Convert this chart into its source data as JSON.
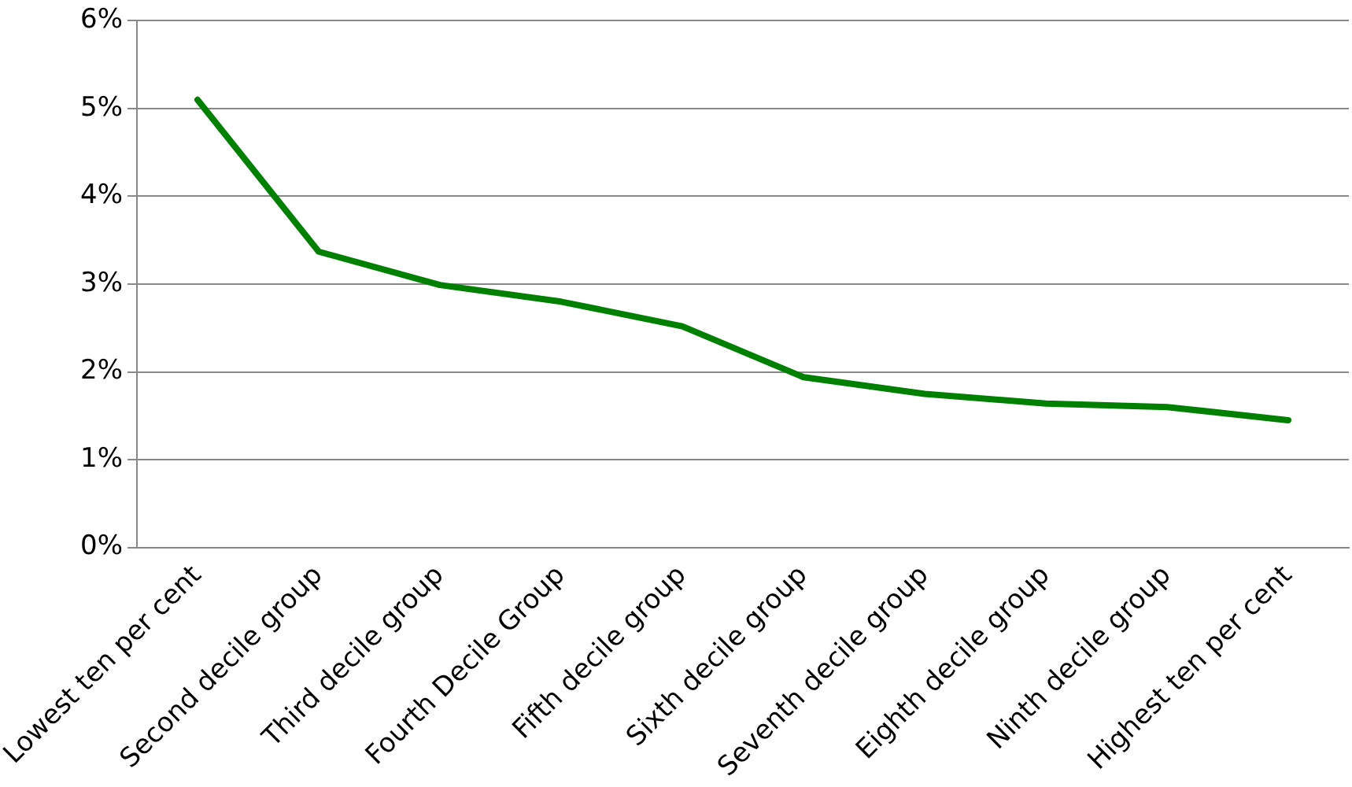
{
  "chart_data": {
    "type": "line",
    "categories": [
      "Lowest ten per cent",
      "Second decile group",
      "Third decile group",
      "Fourth Decile Group",
      "Fifth decile group",
      "Sixth decile group",
      "Seventh decile group",
      "Eighth decile group",
      "Ninth decile group",
      "Highest ten per cent"
    ],
    "series": [
      {
        "color": "#008000",
        "values": [
          5.1,
          3.37,
          2.99,
          2.8,
          2.52,
          1.94,
          1.75,
          1.64,
          1.6,
          1.45
        ]
      }
    ],
    "ylim": [
      0,
      6
    ],
    "yticks": [
      {
        "value": 0,
        "label": "0%"
      },
      {
        "value": 1,
        "label": "1%"
      },
      {
        "value": 2,
        "label": "2%"
      },
      {
        "value": 3,
        "label": "3%"
      },
      {
        "value": 4,
        "label": "4%"
      },
      {
        "value": 5,
        "label": "5%"
      },
      {
        "value": 6,
        "label": "6%"
      }
    ],
    "grid": "y",
    "legend": false,
    "marker": "none",
    "line_style": "solid"
  }
}
